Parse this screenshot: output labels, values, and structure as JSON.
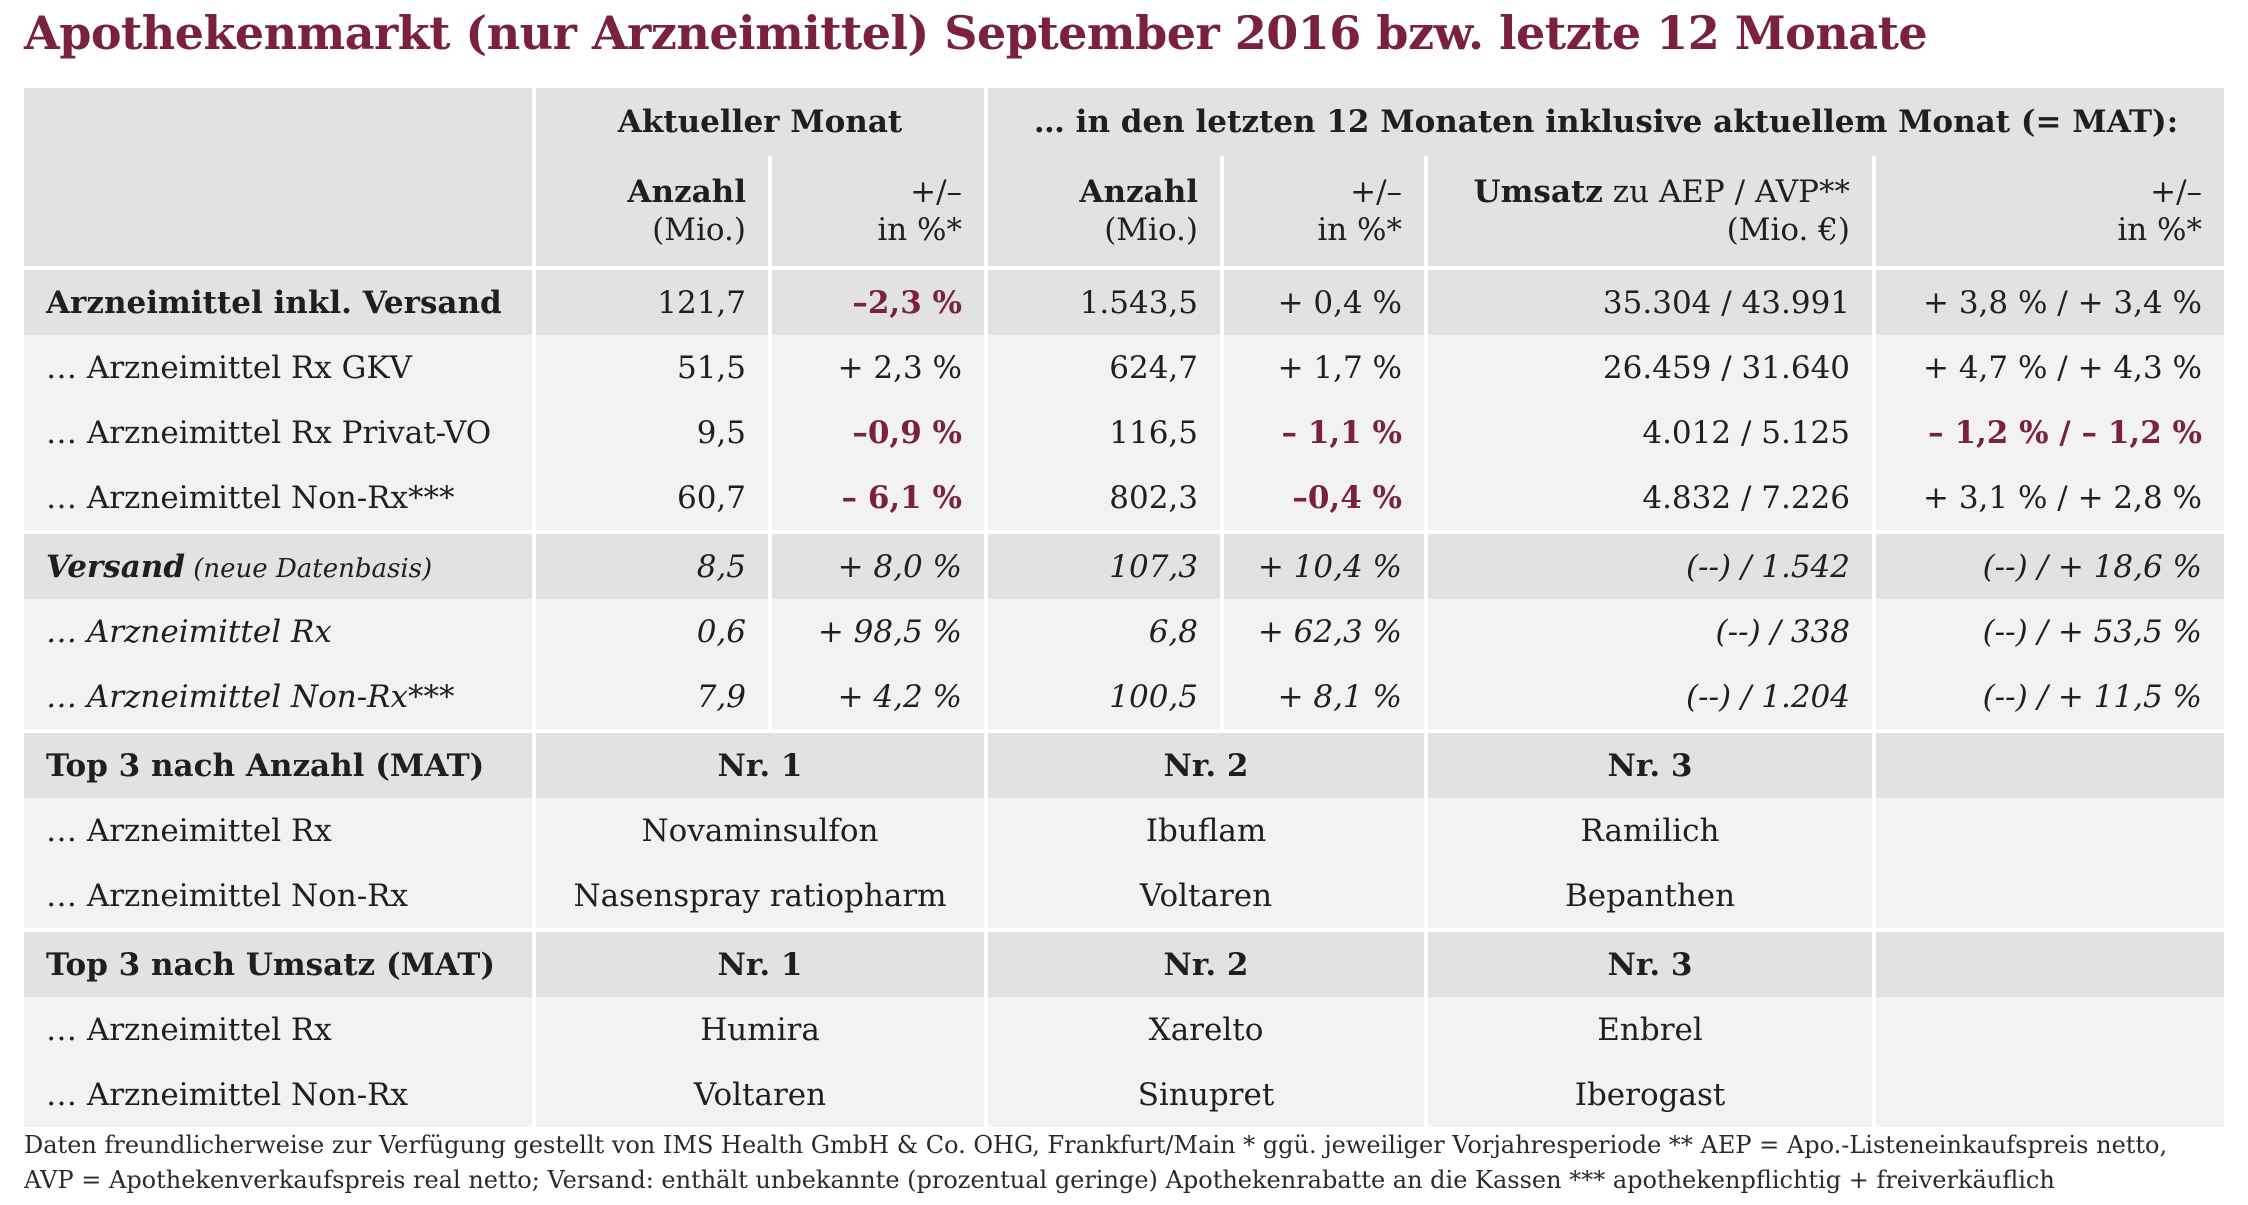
{
  "title": "Apothekenmarkt (nur Arzneimittel) September 2016 bzw. letzte 12 Monate",
  "colors": {
    "accent": "#7b2140",
    "band_dark": "#e2e2e4",
    "band_light": "#f2f2f3"
  },
  "header": {
    "group_current": "Aktueller Monat",
    "group_mat": "… in den letzten 12 Monaten inklusive aktuellem Monat (= MAT):",
    "col_anzahl_1": "Anzahl",
    "col_anzahl_2": "(Mio.)",
    "col_pm_1": "+/–",
    "col_pm_2": "in %*",
    "col_umsatz_bold": "Umsatz",
    "col_umsatz_rest": " zu AEP / AVP**",
    "col_umsatz_2": "(Mio. €)"
  },
  "rows": [
    {
      "label": "Arzneimittel inkl. Versand",
      "sub": "",
      "a1": "121,7",
      "p1": "–2,3 %",
      "a2": "1.543,5",
      "p2": "+ 0,4 %",
      "u": "35.304 / 43.991",
      "pu": "+ 3,8 % / + 3,4 %"
    },
    {
      "label": "… Arzneimittel Rx GKV",
      "sub": "",
      "a1": "51,5",
      "p1": "+ 2,3 %",
      "a2": "624,7",
      "p2": "+ 1,7 %",
      "u": "26.459 / 31.640",
      "pu": "+ 4,7 % / + 4,3 %"
    },
    {
      "label": "… Arzneimittel Rx Privat-VO",
      "sub": "",
      "a1": "9,5",
      "p1": "–0,9 %",
      "a2": "116,5",
      "p2": "– 1,1 %",
      "u": "4.012 / 5.125",
      "pu": "– 1,2 % / – 1,2 %"
    },
    {
      "label": "… Arzneimittel Non-Rx***",
      "sub": "",
      "a1": "60,7",
      "p1": "– 6,1 %",
      "a2": "802,3",
      "p2": "–0,4 %",
      "u": "4.832 / 7.226",
      "pu": "+ 3,1 % / + 2,8 %"
    },
    {
      "label": "Versand",
      "sub": " (neue Datenbasis)",
      "a1": "8,5",
      "p1": "+ 8,0 %",
      "a2": "107,3",
      "p2": "+ 10,4 %",
      "u": "(--) / 1.542",
      "pu": "(--) / + 18,6 %"
    },
    {
      "label": "… Arzneimittel Rx",
      "sub": "",
      "a1": "0,6",
      "p1": "+ 98,5 %",
      "a2": "6,8",
      "p2": "+ 62,3 %",
      "u": "(--) / 338",
      "pu": "(--) / + 53,5 %"
    },
    {
      "label": "… Arzneimittel Non-Rx***",
      "sub": "",
      "a1": "7,9",
      "p1": "+ 4,2 %",
      "a2": "100,5",
      "p2": "+ 8,1 %",
      "u": "(--) / 1.204",
      "pu": "(--) / + 11,5 %"
    }
  ],
  "top_anzahl": {
    "label": "Top 3 nach Anzahl (MAT)",
    "nr": [
      "Nr. 1",
      "Nr. 2",
      "Nr. 3"
    ],
    "rx_label": "… Arzneimittel Rx",
    "rx": [
      "Novaminsulfon",
      "Ibuflam",
      "Ramilich"
    ],
    "nonrx_label": "… Arzneimittel Non-Rx",
    "nonrx": [
      "Nasenspray ratiopharm",
      "Voltaren",
      "Bepanthen"
    ]
  },
  "top_umsatz": {
    "label": "Top 3 nach Umsatz (MAT)",
    "nr": [
      "Nr. 1",
      "Nr. 2",
      "Nr. 3"
    ],
    "rx_label": "… Arzneimittel Rx",
    "rx": [
      "Humira",
      "Xarelto",
      "Enbrel"
    ],
    "nonrx_label": "… Arzneimittel Non-Rx",
    "nonrx": [
      "Voltaren",
      "Sinupret",
      "Iberogast"
    ]
  },
  "footnote": {
    "line1": "Daten freundlicherweise zur Verfügung gestellt von IMS Health GmbH & Co. OHG, Frankfurt/Main    * ggü. jeweiliger Vorjahresperiode    ** AEP = Apo.-Listeneinkaufspreis netto,",
    "line2": "AVP = Apothekenverkaufspreis real netto; Versand: enthält unbekannte (prozentual geringe) Apothekenrabatte an die Kassen    *** apothekenpflichtig + freiverkäuflich"
  }
}
